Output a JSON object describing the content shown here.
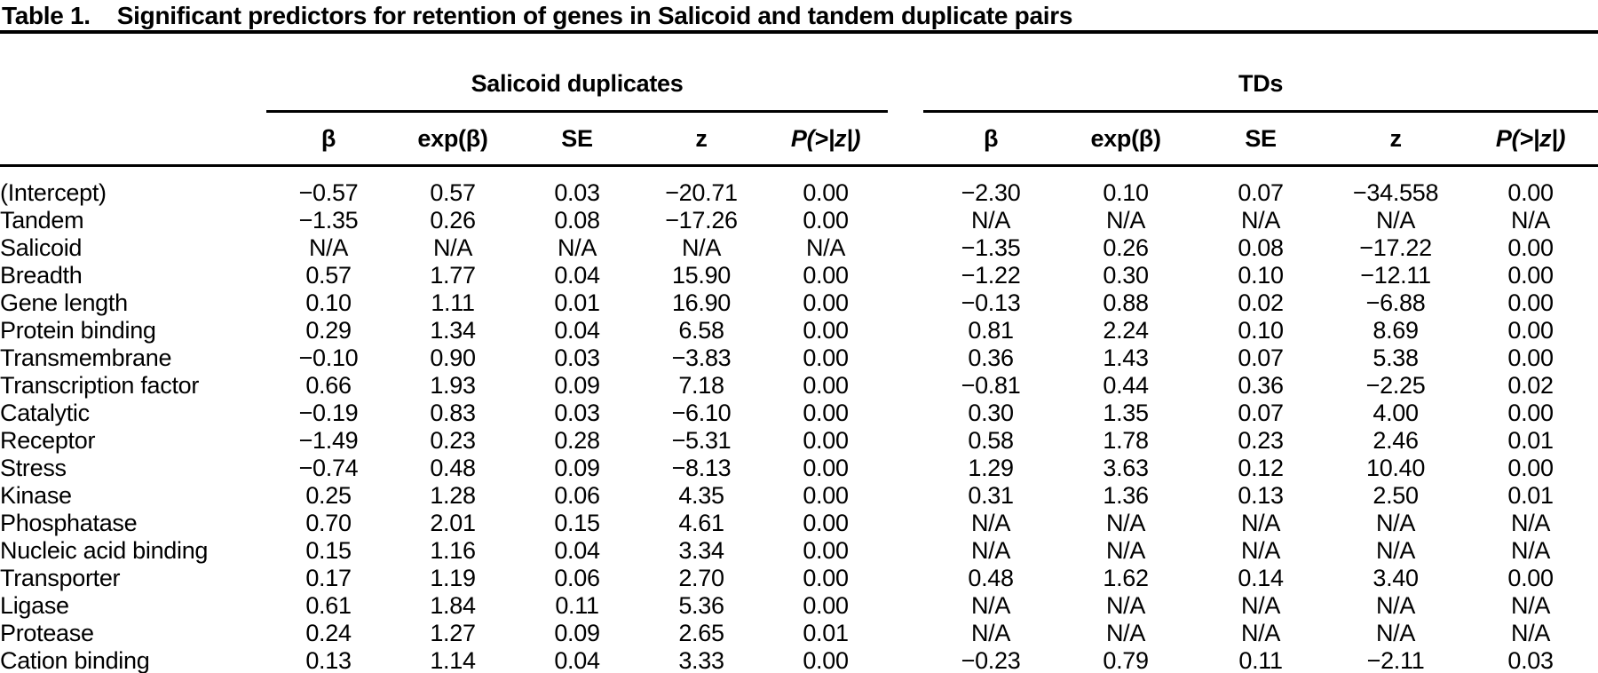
{
  "title": {
    "label": "Table 1.",
    "text": "Significant predictors for retention of genes in Salicoid and tandem duplicate pairs"
  },
  "table": {
    "group_headers": [
      "Salicoid duplicates",
      "TDs"
    ],
    "col_headers": [
      "β",
      "exp(β)",
      "SE",
      "z",
      "P(>|z|)"
    ],
    "rows": [
      {
        "label": "(Intercept)",
        "salicoid": [
          "−0.57",
          "0.57",
          "0.03",
          "−20.71",
          "0.00"
        ],
        "tds": [
          "−2.30",
          "0.10",
          "0.07",
          "−34.558",
          "0.00"
        ]
      },
      {
        "label": "Tandem",
        "salicoid": [
          "−1.35",
          "0.26",
          "0.08",
          "−17.26",
          "0.00"
        ],
        "tds": [
          "N/A",
          "N/A",
          "N/A",
          "N/A",
          "N/A"
        ]
      },
      {
        "label": "Salicoid",
        "salicoid": [
          "N/A",
          "N/A",
          "N/A",
          "N/A",
          "N/A"
        ],
        "tds": [
          "−1.35",
          "0.26",
          "0.08",
          "−17.22",
          "0.00"
        ]
      },
      {
        "label": "Breadth",
        "salicoid": [
          "0.57",
          "1.77",
          "0.04",
          "15.90",
          "0.00"
        ],
        "tds": [
          "−1.22",
          "0.30",
          "0.10",
          "−12.11",
          "0.00"
        ]
      },
      {
        "label": "Gene length",
        "salicoid": [
          "0.10",
          "1.11",
          "0.01",
          "16.90",
          "0.00"
        ],
        "tds": [
          "−0.13",
          "0.88",
          "0.02",
          "−6.88",
          "0.00"
        ]
      },
      {
        "label": "Protein binding",
        "salicoid": [
          "0.29",
          "1.34",
          "0.04",
          "6.58",
          "0.00"
        ],
        "tds": [
          "0.81",
          "2.24",
          "0.10",
          "8.69",
          "0.00"
        ]
      },
      {
        "label": "Transmembrane",
        "salicoid": [
          "−0.10",
          "0.90",
          "0.03",
          "−3.83",
          "0.00"
        ],
        "tds": [
          "0.36",
          "1.43",
          "0.07",
          "5.38",
          "0.00"
        ]
      },
      {
        "label": "Transcription factor",
        "salicoid": [
          "0.66",
          "1.93",
          "0.09",
          "7.18",
          "0.00"
        ],
        "tds": [
          "−0.81",
          "0.44",
          "0.36",
          "−2.25",
          "0.02"
        ]
      },
      {
        "label": "Catalytic",
        "salicoid": [
          "−0.19",
          "0.83",
          "0.03",
          "−6.10",
          "0.00"
        ],
        "tds": [
          "0.30",
          "1.35",
          "0.07",
          "4.00",
          "0.00"
        ]
      },
      {
        "label": "Receptor",
        "salicoid": [
          "−1.49",
          "0.23",
          "0.28",
          "−5.31",
          "0.00"
        ],
        "tds": [
          "0.58",
          "1.78",
          "0.23",
          "2.46",
          "0.01"
        ]
      },
      {
        "label": "Stress",
        "salicoid": [
          "−0.74",
          "0.48",
          "0.09",
          "−8.13",
          "0.00"
        ],
        "tds": [
          "1.29",
          "3.63",
          "0.12",
          "10.40",
          "0.00"
        ]
      },
      {
        "label": "Kinase",
        "salicoid": [
          "0.25",
          "1.28",
          "0.06",
          "4.35",
          "0.00"
        ],
        "tds": [
          "0.31",
          "1.36",
          "0.13",
          "2.50",
          "0.01"
        ]
      },
      {
        "label": "Phosphatase",
        "salicoid": [
          "0.70",
          "2.01",
          "0.15",
          "4.61",
          "0.00"
        ],
        "tds": [
          "N/A",
          "N/A",
          "N/A",
          "N/A",
          "N/A"
        ]
      },
      {
        "label": "Nucleic acid binding",
        "salicoid": [
          "0.15",
          "1.16",
          "0.04",
          "3.34",
          "0.00"
        ],
        "tds": [
          "N/A",
          "N/A",
          "N/A",
          "N/A",
          "N/A"
        ]
      },
      {
        "label": "Transporter",
        "salicoid": [
          "0.17",
          "1.19",
          "0.06",
          "2.70",
          "0.00"
        ],
        "tds": [
          "0.48",
          "1.62",
          "0.14",
          "3.40",
          "0.00"
        ]
      },
      {
        "label": "Ligase",
        "salicoid": [
          "0.61",
          "1.84",
          "0.11",
          "5.36",
          "0.00"
        ],
        "tds": [
          "N/A",
          "N/A",
          "N/A",
          "N/A",
          "N/A"
        ]
      },
      {
        "label": "Protease",
        "salicoid": [
          "0.24",
          "1.27",
          "0.09",
          "2.65",
          "0.01"
        ],
        "tds": [
          "N/A",
          "N/A",
          "N/A",
          "N/A",
          "N/A"
        ]
      },
      {
        "label": "Cation binding",
        "salicoid": [
          "0.13",
          "1.14",
          "0.04",
          "3.33",
          "0.00"
        ],
        "tds": [
          "−0.23",
          "0.79",
          "0.11",
          "−2.11",
          "0.03"
        ]
      }
    ]
  },
  "colors": {
    "text": "#000000",
    "background": "#ffffff",
    "rule": "#000000"
  }
}
